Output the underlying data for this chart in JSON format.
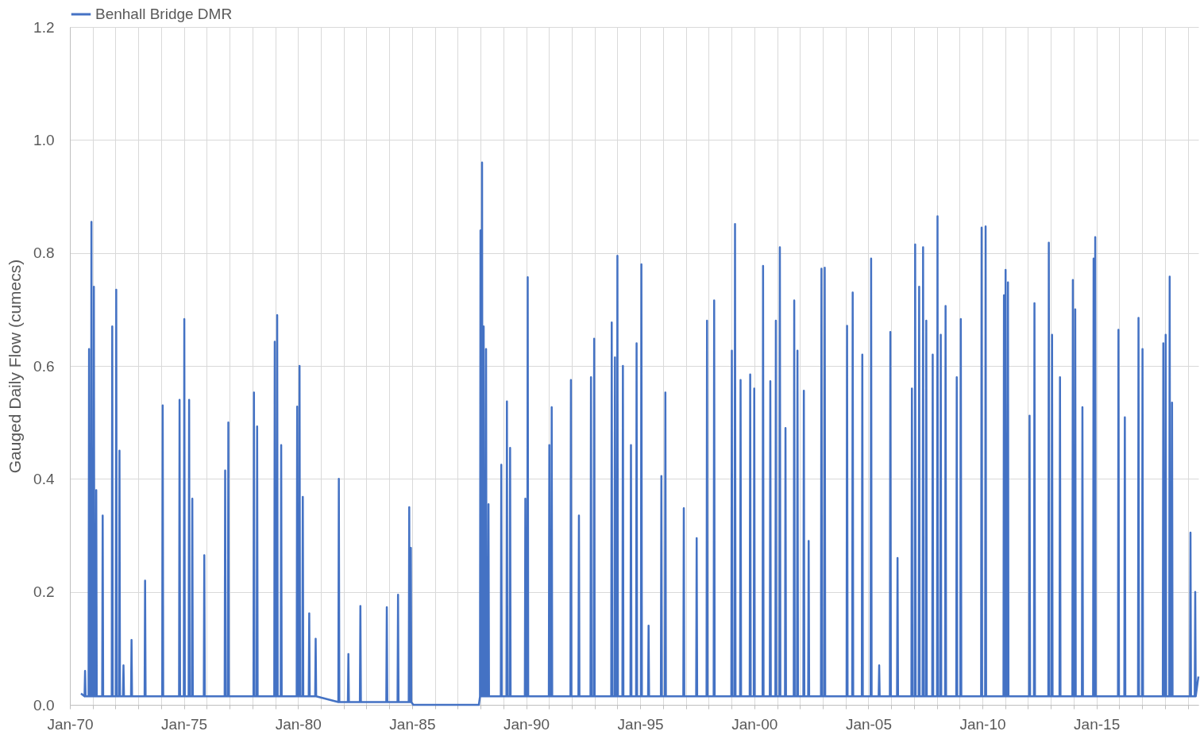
{
  "chart_data": {
    "type": "line",
    "ylabel": "Gauged Daily Flow (cumecs)",
    "legend": "top",
    "grid": true,
    "line_style": "solid",
    "xlim": [
      "1970-01-01",
      "2019-06-21"
    ],
    "ylim": [
      0,
      1.2
    ],
    "yticks": [
      {
        "value": 0,
        "label": "0.0"
      },
      0.2,
      0.4,
      0.6,
      0.8,
      {
        "value": 1,
        "label": "1.0"
      },
      1.2
    ],
    "xticks": [
      {
        "value": "1970-01-01",
        "label": "Jan-70"
      },
      {
        "value": "1971-01-01",
        "label": null
      },
      {
        "value": "1972-01-01",
        "label": null
      },
      {
        "value": "1973-01-01",
        "label": null
      },
      {
        "value": "1974-01-01",
        "label": null
      },
      {
        "value": "1975-01-01",
        "label": "Jan-75"
      },
      {
        "value": "1976-01-01",
        "label": null
      },
      {
        "value": "1977-01-01",
        "label": null
      },
      {
        "value": "1978-01-01",
        "label": null
      },
      {
        "value": "1979-01-01",
        "label": null
      },
      {
        "value": "1980-01-01",
        "label": "Jan-80"
      },
      {
        "value": "1981-01-01",
        "label": null
      },
      {
        "value": "1982-01-01",
        "label": null
      },
      {
        "value": "1983-01-01",
        "label": null
      },
      {
        "value": "1984-01-01",
        "label": null
      },
      {
        "value": "1985-01-01",
        "label": "Jan-85"
      },
      {
        "value": "1986-01-01",
        "label": null
      },
      {
        "value": "1987-01-01",
        "label": null
      },
      {
        "value": "1988-01-01",
        "label": null
      },
      {
        "value": "1989-01-01",
        "label": null
      },
      {
        "value": "1990-01-01",
        "label": "Jan-90"
      },
      {
        "value": "1991-01-01",
        "label": null
      },
      {
        "value": "1992-01-01",
        "label": null
      },
      {
        "value": "1993-01-01",
        "label": null
      },
      {
        "value": "1994-01-01",
        "label": null
      },
      {
        "value": "1995-01-01",
        "label": "Jan-95"
      },
      {
        "value": "1996-01-01",
        "label": null
      },
      {
        "value": "1997-01-01",
        "label": null
      },
      {
        "value": "1998-01-01",
        "label": null
      },
      {
        "value": "1999-01-01",
        "label": null
      },
      {
        "value": "2000-01-01",
        "label": "Jan-00"
      },
      {
        "value": "2001-01-01",
        "label": null
      },
      {
        "value": "2002-01-01",
        "label": null
      },
      {
        "value": "2003-01-01",
        "label": null
      },
      {
        "value": "2004-01-01",
        "label": null
      },
      {
        "value": "2005-01-01",
        "label": "Jan-05"
      },
      {
        "value": "2006-01-01",
        "label": null
      },
      {
        "value": "2007-01-01",
        "label": null
      },
      {
        "value": "2008-01-01",
        "label": null
      },
      {
        "value": "2009-01-01",
        "label": null
      },
      {
        "value": "2010-01-01",
        "label": "Jan-10"
      },
      {
        "value": "2011-01-01",
        "label": null
      },
      {
        "value": "2012-01-01",
        "label": null
      },
      {
        "value": "2013-01-01",
        "label": null
      },
      {
        "value": "2014-01-01",
        "label": null
      },
      {
        "value": "2015-01-01",
        "label": "Jan-15"
      },
      {
        "value": "2016-01-01",
        "label": null
      },
      {
        "value": "2017-01-01",
        "label": null
      },
      {
        "value": "2018-01-01",
        "label": null
      },
      {
        "value": "2019-01-01",
        "label": null
      }
    ],
    "series": [
      {
        "name": "Benhall Bridge DMR",
        "color": "#4472c4",
        "x": [
          "1970-06-28",
          "1970-08-24",
          "1970-09-01",
          "1970-09-09",
          "1970-10-27",
          "1970-11-04",
          "1970-11-12",
          "1970-12-04",
          "1970-12-12",
          "1970-12-20",
          "1971-01-12",
          "1971-01-20",
          "1971-01-28",
          "1971-02-19",
          "1971-02-27",
          "1971-03-07",
          "1971-06-02",
          "1971-06-10",
          "1971-06-18",
          "1971-11-02",
          "1971-11-10",
          "1971-11-18",
          "1972-01-05",
          "1972-01-13",
          "1972-01-21",
          "1972-02-26",
          "1972-03-05",
          "1972-03-13",
          "1972-04-30",
          "1972-05-08",
          "1972-05-16",
          "1972-09-06",
          "1972-09-14",
          "1972-09-22",
          "1973-04-11",
          "1973-04-19",
          "1973-04-27",
          "1974-01-18",
          "1974-01-26",
          "1974-02-03",
          "1974-10-15",
          "1974-10-23",
          "1974-10-31",
          "1974-12-30",
          "1975-01-07",
          "1975-01-15",
          "1975-03-17",
          "1975-03-25",
          "1975-04-02",
          "1975-05-07",
          "1975-05-15",
          "1975-05-23",
          "1975-11-15",
          "1975-11-23",
          "1975-12-01",
          "1976-10-14",
          "1976-10-22",
          "1976-10-30",
          "1976-12-04",
          "1976-12-12",
          "1976-12-20",
          "1978-01-18",
          "1978-01-26",
          "1978-02-03",
          "1978-03-10",
          "1978-03-18",
          "1978-03-26",
          "1978-12-17",
          "1978-12-25",
          "1979-01-02",
          "1979-01-25",
          "1979-02-02",
          "1979-02-10",
          "1979-03-30",
          "1979-04-07",
          "1979-04-15",
          "1979-12-11",
          "1979-12-19",
          "1979-12-27",
          "1980-01-18",
          "1980-01-26",
          "1980-02-03",
          "1980-03-10",
          "1980-03-18",
          "1980-03-26",
          "1980-06-21",
          "1980-06-29",
          "1980-07-07",
          "1980-10-02",
          "1980-10-10",
          "1980-10-18",
          "1981-10-08",
          "1981-10-16",
          "1981-10-24",
          "1982-03-10",
          "1982-03-18",
          "1982-03-26",
          "1982-09-18",
          "1982-09-26",
          "1982-10-04",
          "1983-11-15",
          "1983-11-23",
          "1983-12-01",
          "1984-05-13",
          "1984-05-21",
          "1984-05-29",
          "1984-11-08",
          "1984-11-16",
          "1984-11-24",
          "1984-12-04",
          "1984-12-12",
          "1984-12-20",
          "1985-01-20",
          "1987-12-06",
          "1987-12-24",
          "1988-01-01",
          "1988-01-09",
          "1988-01-18",
          "1988-01-26",
          "1988-02-03",
          "1988-02-13",
          "1988-02-21",
          "1988-02-29",
          "1988-03-22",
          "1988-03-30",
          "1988-04-07",
          "1988-04-30",
          "1988-05-08",
          "1988-05-16",
          "1988-11-21",
          "1988-11-29",
          "1988-12-07",
          "1989-02-19",
          "1989-02-27",
          "1989-03-07",
          "1989-04-11",
          "1989-04-19",
          "1989-04-27",
          "1989-12-11",
          "1989-12-19",
          "1989-12-27",
          "1990-01-18",
          "1990-01-26",
          "1990-02-03",
          "1990-12-30",
          "1991-01-07",
          "1991-01-15",
          "1991-02-06",
          "1991-02-14",
          "1991-02-22",
          "1991-12-11",
          "1991-12-19",
          "1991-12-27",
          "1992-04-17",
          "1992-04-25",
          "1992-05-03",
          "1992-10-27",
          "1992-11-04",
          "1992-11-12",
          "1992-12-17",
          "1992-12-25",
          "1993-01-02",
          "1993-09-24",
          "1993-10-02",
          "1993-10-10",
          "1993-11-15",
          "1993-11-23",
          "1993-12-01",
          "1993-12-24",
          "1994-01-01",
          "1994-01-09",
          "1994-03-22",
          "1994-03-30",
          "1994-04-07",
          "1994-07-29",
          "1994-08-06",
          "1994-08-14",
          "1994-10-27",
          "1994-11-04",
          "1994-11-12",
          "1995-01-12",
          "1995-01-20",
          "1995-01-28",
          "1995-05-07",
          "1995-05-15",
          "1995-05-23",
          "1995-11-28",
          "1995-12-06",
          "1995-12-14",
          "1996-01-31",
          "1996-02-08",
          "1996-02-16",
          "1996-11-21",
          "1996-11-29",
          "1996-12-07",
          "1997-06-15",
          "1997-06-23",
          "1997-07-01",
          "1997-11-28",
          "1997-12-06",
          "1997-12-14",
          "1998-03-22",
          "1998-03-30",
          "1998-04-07",
          "1998-12-30",
          "1999-01-07",
          "1999-01-15",
          "1999-02-19",
          "1999-02-27",
          "1999-03-07",
          "1999-05-19",
          "1999-05-27",
          "1999-06-04",
          "1999-10-20",
          "1999-10-28",
          "1999-11-05",
          "1999-12-24",
          "2000-01-01",
          "2000-01-09",
          "2000-05-13",
          "2000-05-21",
          "2000-05-29",
          "2000-09-06",
          "2000-09-14",
          "2000-09-22",
          "2000-12-04",
          "2000-12-12",
          "2000-12-20",
          "2001-02-06",
          "2001-02-14",
          "2001-02-22",
          "2001-05-07",
          "2001-05-15",
          "2001-05-23",
          "2001-09-24",
          "2001-10-02",
          "2001-10-10",
          "2001-11-15",
          "2001-11-23",
          "2001-12-01",
          "2002-02-25",
          "2002-03-05",
          "2002-03-13",
          "2002-05-13",
          "2002-05-21",
          "2002-05-29",
          "2002-12-04",
          "2002-12-12",
          "2002-12-20",
          "2003-01-25",
          "2003-02-02",
          "2003-02-10",
          "2004-01-18",
          "2004-01-26",
          "2004-02-03",
          "2004-04-17",
          "2004-04-25",
          "2004-05-03",
          "2004-09-18",
          "2004-09-26",
          "2004-10-04",
          "2005-02-06",
          "2005-02-14",
          "2005-02-22",
          "2005-06-15",
          "2005-06-23",
          "2005-07-01",
          "2005-12-11",
          "2005-12-19",
          "2005-12-27",
          "2006-04-05",
          "2006-04-13",
          "2006-04-21",
          "2006-11-21",
          "2006-11-29",
          "2006-12-07",
          "2007-01-12",
          "2007-01-20",
          "2007-01-28",
          "2007-03-17",
          "2007-03-25",
          "2007-04-02",
          "2007-05-19",
          "2007-05-27",
          "2007-06-04",
          "2007-07-09",
          "2007-07-17",
          "2007-07-25",
          "2007-10-20",
          "2007-10-28",
          "2007-11-05",
          "2008-01-05",
          "2008-01-13",
          "2008-01-21",
          "2008-02-26",
          "2008-03-05",
          "2008-03-13",
          "2008-05-13",
          "2008-05-21",
          "2008-05-29",
          "2008-11-08",
          "2008-11-16",
          "2008-11-24",
          "2009-01-12",
          "2009-01-20",
          "2009-01-28",
          "2009-12-11",
          "2009-12-19",
          "2009-12-27",
          "2010-02-13",
          "2010-02-21",
          "2010-03-01",
          "2010-12-04",
          "2010-12-12",
          "2010-12-20",
          "2010-12-30",
          "2011-01-07",
          "2011-01-15",
          "2011-02-06",
          "2011-02-14",
          "2011-02-22",
          "2012-01-18",
          "2012-01-26",
          "2012-02-03",
          "2012-04-05",
          "2012-04-13",
          "2012-04-21",
          "2012-11-21",
          "2012-11-29",
          "2012-12-07",
          "2013-01-12",
          "2013-01-20",
          "2013-01-28",
          "2013-05-19",
          "2013-05-27",
          "2013-06-04",
          "2013-12-11",
          "2013-12-19",
          "2013-12-27",
          "2014-01-18",
          "2014-01-26",
          "2014-02-03",
          "2014-05-13",
          "2014-05-21",
          "2014-05-29",
          "2014-11-08",
          "2014-11-16",
          "2014-11-24",
          "2014-12-04",
          "2014-12-12",
          "2014-12-20",
          "2015-12-11",
          "2015-12-19",
          "2015-12-27",
          "2016-03-22",
          "2016-03-30",
          "2016-04-07",
          "2016-10-27",
          "2016-11-04",
          "2016-11-12",
          "2016-12-30",
          "2017-01-07",
          "2017-01-15",
          "2017-11-28",
          "2017-12-06",
          "2017-12-14",
          "2018-01-05",
          "2018-01-13",
          "2018-01-21",
          "2018-03-10",
          "2018-03-18",
          "2018-03-26",
          "2018-04-17",
          "2018-04-25",
          "2018-05-03",
          "2019-02-06",
          "2019-02-14",
          "2019-02-22",
          "2019-04-23",
          "2019-05-01",
          "2019-05-09",
          "2019-06-21"
        ],
        "values": [
          0.02,
          0.015,
          0.06,
          0.015,
          0.015,
          0.63,
          0.015,
          0.015,
          0.855,
          0.015,
          0.015,
          0.74,
          0.015,
          0.015,
          0.38,
          0.015,
          0.015,
          0.335,
          0.015,
          0.015,
          0.67,
          0.015,
          0.015,
          0.735,
          0.015,
          0.015,
          0.45,
          0.015,
          0.015,
          0.07,
          0.015,
          0.015,
          0.115,
          0.015,
          0.015,
          0.22,
          0.015,
          0.015,
          0.53,
          0.015,
          0.015,
          0.54,
          0.015,
          0.015,
          0.683,
          0.015,
          0.015,
          0.54,
          0.015,
          0.015,
          0.365,
          0.015,
          0.015,
          0.265,
          0.015,
          0.015,
          0.415,
          0.015,
          0.015,
          0.5,
          0.015,
          0.015,
          0.553,
          0.015,
          0.015,
          0.493,
          0.015,
          0.015,
          0.643,
          0.015,
          0.015,
          0.69,
          0.015,
          0.015,
          0.46,
          0.015,
          0.015,
          0.528,
          0.015,
          0.015,
          0.6,
          0.015,
          0.015,
          0.368,
          0.015,
          0.015,
          0.162,
          0.015,
          0.015,
          0.117,
          0.015,
          0.005,
          0.4,
          0.005,
          0.005,
          0.09,
          0.005,
          0.005,
          0.175,
          0.005,
          0.005,
          0.173,
          0.005,
          0.005,
          0.195,
          0.005,
          0.005,
          0.35,
          0.005,
          0.005,
          0.278,
          0.005,
          0,
          0,
          0.015,
          0.84,
          0.015,
          0.015,
          0.96,
          0.015,
          0.015,
          0.67,
          0.015,
          0.015,
          0.63,
          0.015,
          0.015,
          0.355,
          0.015,
          0.015,
          0.425,
          0.015,
          0.015,
          0.537,
          0.015,
          0.015,
          0.455,
          0.015,
          0.015,
          0.365,
          0.015,
          0.015,
          0.757,
          0.015,
          0.015,
          0.46,
          0.015,
          0.015,
          0.527,
          0.015,
          0.015,
          0.575,
          0.015,
          0.015,
          0.335,
          0.015,
          0.015,
          0.58,
          0.015,
          0.015,
          0.648,
          0.015,
          0.015,
          0.677,
          0.015,
          0.015,
          0.615,
          0.015,
          0.015,
          0.795,
          0.015,
          0.015,
          0.6,
          0.015,
          0.015,
          0.46,
          0.015,
          0.015,
          0.64,
          0.015,
          0.015,
          0.78,
          0.015,
          0.015,
          0.14,
          0.015,
          0.015,
          0.405,
          0.015,
          0.015,
          0.553,
          0.015,
          0.015,
          0.348,
          0.015,
          0.015,
          0.295,
          0.015,
          0.015,
          0.68,
          0.015,
          0.015,
          0.716,
          0.015,
          0.015,
          0.627,
          0.015,
          0.015,
          0.851,
          0.015,
          0.015,
          0.575,
          0.015,
          0.015,
          0.585,
          0.015,
          0.015,
          0.56,
          0.015,
          0.015,
          0.777,
          0.015,
          0.015,
          0.573,
          0.015,
          0.015,
          0.68,
          0.015,
          0.015,
          0.81,
          0.015,
          0.015,
          0.49,
          0.015,
          0.015,
          0.716,
          0.015,
          0.015,
          0.627,
          0.015,
          0.015,
          0.556,
          0.015,
          0.015,
          0.29,
          0.015,
          0.015,
          0.772,
          0.015,
          0.015,
          0.774,
          0.015,
          0.015,
          0.671,
          0.015,
          0.015,
          0.73,
          0.015,
          0.015,
          0.62,
          0.015,
          0.015,
          0.79,
          0.015,
          0.015,
          0.07,
          0.015,
          0.015,
          0.66,
          0.015,
          0.015,
          0.26,
          0.015,
          0.015,
          0.56,
          0.015,
          0.015,
          0.815,
          0.015,
          0.015,
          0.74,
          0.015,
          0.015,
          0.81,
          0.015,
          0.015,
          0.68,
          0.015,
          0.015,
          0.62,
          0.015,
          0.015,
          0.865,
          0.015,
          0.015,
          0.655,
          0.015,
          0.015,
          0.706,
          0.015,
          0.015,
          0.58,
          0.015,
          0.015,
          0.683,
          0.015,
          0.015,
          0.845,
          0.015,
          0.015,
          0.847,
          0.015,
          0.015,
          0.725,
          0.015,
          0.015,
          0.77,
          0.015,
          0.015,
          0.748,
          0.015,
          0.015,
          0.512,
          0.015,
          0.015,
          0.711,
          0.015,
          0.015,
          0.818,
          0.015,
          0.015,
          0.655,
          0.015,
          0.015,
          0.58,
          0.015,
          0.015,
          0.752,
          0.015,
          0.015,
          0.7,
          0.015,
          0.015,
          0.527,
          0.015,
          0.015,
          0.79,
          0.015,
          0.015,
          0.828,
          0.015,
          0.015,
          0.664,
          0.015,
          0.015,
          0.509,
          0.015,
          0.015,
          0.685,
          0.015,
          0.015,
          0.63,
          0.015,
          0.015,
          0.64,
          0.015,
          0.015,
          0.655,
          0.015,
          0.015,
          0.758,
          0.015,
          0.015,
          0.535,
          0.015,
          0.015,
          0.305,
          0.015,
          0.015,
          0.2,
          0.015,
          0.05
        ]
      }
    ]
  }
}
